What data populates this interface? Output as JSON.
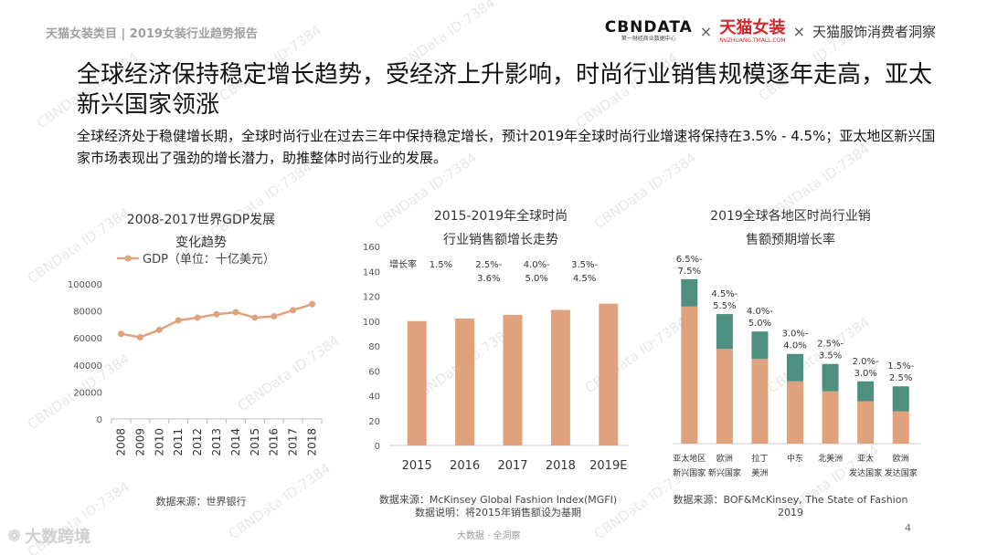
{
  "header": {
    "category": "天猫女装类目 | 2019女装行业趋势报告",
    "brand_cbn": "CBNDATA",
    "brand_cbn_sub": "第一财经商业数据中心",
    "brand_tmall": "天猫女装",
    "brand_tmall_sub": "NVZHUANG.TMALL.COM",
    "brand_insight": "天猫服饰消费者洞察",
    "sep": "×"
  },
  "headline": "全球经济保持稳定增长趋势，受经济上升影响，时尚行业销售规模逐年走高，亚太新兴国家领涨",
  "subline": "全球经济处于稳健增长期，全球时尚行业在过去三年中保持稳定增长，预计2019年全球时尚行业增速将保持在3.5% - 4.5%；亚太地区新兴国家市场表现出了强劲的增长潜力，助推整体时尚行业的发展。",
  "watermark": "CBNData ID:7384",
  "colors": {
    "accent": "#e0a27c",
    "teal": "#4f8f80",
    "grid": "#dcdcdc",
    "title": "#333333"
  },
  "chart_data": [
    {
      "type": "line",
      "title": "2008-2017世界GDP发展变化趋势",
      "legend": "GDP（单位：十亿美元）",
      "legend_position": "top-left",
      "x": [
        "2008",
        "2009",
        "2010",
        "2011",
        "2012",
        "2013",
        "2014",
        "2015",
        "2016",
        "2017",
        "2018"
      ],
      "series": [
        {
          "name": "GDP（单位：十亿美元）",
          "values": [
            63000,
            60500,
            66000,
            73000,
            75000,
            77500,
            79000,
            75000,
            76000,
            80500,
            85000
          ]
        }
      ],
      "ylim": [
        0,
        100000
      ],
      "yticks": [
        "0",
        "20000",
        "40000",
        "60000",
        "80000",
        "100000"
      ],
      "grid": false
    },
    {
      "type": "bar",
      "title": "2015-2019年全球时尚行业销售额增长走势",
      "categories": [
        "2015",
        "2016",
        "2017",
        "2018",
        "2019E"
      ],
      "values": [
        100,
        102,
        105,
        109,
        114
      ],
      "growth_header": "增长率",
      "growth_labels": [
        [
          "1.5%"
        ],
        [
          "2.5%-",
          "3.6%"
        ],
        [
          "4.0%-",
          "5.0%"
        ],
        [
          "3.5%-",
          "4.5%"
        ]
      ],
      "ylim": [
        0,
        160
      ],
      "yticks": [
        "0",
        "20",
        "40",
        "60",
        "80",
        "100",
        "120",
        "140",
        "160"
      ],
      "grid": false
    },
    {
      "type": "bar",
      "title": "2019全球各地区时尚行业销售额预期增长率",
      "categories": [
        [
          "亚太地区",
          "新兴国家"
        ],
        [
          "欧洲",
          "新兴国家"
        ],
        [
          "拉丁",
          "美洲"
        ],
        [
          "中东"
        ],
        [
          "北美洲"
        ],
        [
          "亚太",
          "发达国家"
        ],
        [
          "欧洲",
          "发达国家"
        ]
      ],
      "series": [
        {
          "values": [
            5.5,
            3.8,
            3.4,
            2.5,
            2.1,
            1.7,
            1.3
          ]
        },
        {
          "values": [
            1.1,
            1.4,
            1.1,
            1.1,
            1.1,
            0.8,
            1.0
          ]
        }
      ],
      "labels": [
        [
          "6.5%-",
          "7.5%"
        ],
        [
          "4.5%-",
          "5.5%"
        ],
        [
          "4.0%-",
          "5.0%"
        ],
        [
          "3.0%-",
          "4.0%"
        ],
        [
          "2.5%-",
          "3.5%"
        ],
        [
          "2.0%-",
          "3.0%"
        ],
        [
          "1.5%-",
          "2.5%"
        ]
      ],
      "stacked": true,
      "grid": false
    }
  ],
  "sources": {
    "gdp": "数据来源：世界银行",
    "fashion": [
      "数据来源：McKinsey Global Fashion Index(MGFI)",
      "数据说明：将2015年销售额设为基期"
    ],
    "region": [
      "数据来源：BOF&McKinsey, The State of Fashion",
      "2019"
    ]
  },
  "footer": {
    "note": "大数据 · 全洞察",
    "page": "4",
    "logo_text": "大数跨境"
  }
}
